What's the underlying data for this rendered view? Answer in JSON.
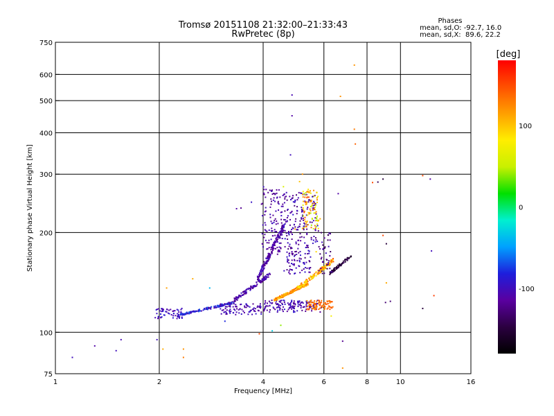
{
  "chart_data": {
    "type": "scatter",
    "title": "Tromsø 20151108 21:32:00–21:33:43",
    "subtitle": "RwPretec (8p)",
    "xlabel": "Frequency [MHz]",
    "ylabel": "Stationary phase Virtual Height [km]",
    "x_scale": "log",
    "y_scale": "log",
    "xlim": [
      1,
      16
    ],
    "ylim": [
      75,
      750
    ],
    "x_ticks": [
      1,
      2,
      4,
      6,
      8,
      10,
      16
    ],
    "y_ticks": [
      75,
      100,
      200,
      300,
      400,
      500,
      600,
      750
    ],
    "grid": true,
    "phase_stats": {
      "header": "Phases",
      "line_o": "mean, sd,O: -92.7, 16.0",
      "line_x": "mean, sd,X:  89.6, 22.2"
    },
    "colorbar": {
      "label": "[deg]",
      "range": [
        -180,
        180
      ],
      "ticks": [
        100,
        0,
        -100
      ],
      "tick_labels": [
        "100",
        "0",
        "-100"
      ]
    },
    "color_scale": [
      "#000000",
      "#2b0040",
      "#5a00a0",
      "#1e1edc",
      "#00a0ff",
      "#00f0d0",
      "#00e000",
      "#c8f000",
      "#ffee00",
      "#ffa000",
      "#ff5000",
      "#ff0000"
    ],
    "points": [
      [
        1.12,
        84,
        -100
      ],
      [
        1.3,
        91,
        -110
      ],
      [
        1.5,
        88,
        -100
      ],
      [
        1.55,
        95,
        -105
      ],
      [
        1.97,
        95,
        -100
      ],
      [
        2.05,
        89,
        110
      ],
      [
        2.1,
        136,
        115
      ],
      [
        2.35,
        89,
        120
      ],
      [
        2.35,
        84,
        130
      ],
      [
        2.5,
        145,
        110
      ],
      [
        2.8,
        136,
        -40
      ],
      [
        3.1,
        108,
        -80
      ],
      [
        3.35,
        236,
        -110
      ],
      [
        3.45,
        237,
        -120
      ],
      [
        3.7,
        247,
        -95
      ],
      [
        3.9,
        99,
        150
      ],
      [
        3.95,
        115,
        -130
      ],
      [
        4.25,
        101,
        -30
      ],
      [
        4.5,
        105,
        40
      ],
      [
        4.58,
        275,
        60
      ],
      [
        4.85,
        450,
        -110
      ],
      [
        4.85,
        520,
        -105
      ],
      [
        4.8,
        343,
        -100
      ],
      [
        4.95,
        205,
        110
      ],
      [
        5.1,
        285,
        100
      ],
      [
        5.2,
        300,
        120
      ],
      [
        5.4,
        265,
        130
      ],
      [
        5.6,
        118,
        110
      ],
      [
        5.7,
        175,
        90
      ],
      [
        5.85,
        220,
        110
      ],
      [
        6.3,
        112,
        75
      ],
      [
        6.6,
        262,
        -110
      ],
      [
        6.8,
        94,
        -120
      ],
      [
        6.8,
        78,
        120
      ],
      [
        6.7,
        515,
        120
      ],
      [
        7.35,
        640,
        120
      ],
      [
        7.35,
        410,
        130
      ],
      [
        7.4,
        370,
        140
      ],
      [
        8.3,
        283,
        150
      ],
      [
        8.6,
        284,
        -140
      ],
      [
        8.9,
        290,
        -150
      ],
      [
        8.9,
        196,
        150
      ],
      [
        9.1,
        185,
        -150
      ],
      [
        9.1,
        141,
        110
      ],
      [
        9.05,
        123,
        -130
      ],
      [
        9.35,
        124,
        -130
      ],
      [
        11.6,
        297,
        150
      ],
      [
        11.6,
        118,
        -150
      ],
      [
        12.2,
        290,
        -110
      ],
      [
        12.3,
        176,
        -100
      ],
      [
        12.5,
        129,
        155
      ]
    ],
    "clusters": [
      {
        "x_range": [
          1.92,
          2.35
        ],
        "y_range": [
          110,
          118
        ],
        "n": 60,
        "phase_range": [
          -115,
          -85
        ],
        "trend": "flat"
      },
      {
        "x_range": [
          2.3,
          3.3
        ],
        "y_range": [
          113,
          123
        ],
        "n": 140,
        "phase_range": [
          -120,
          -60
        ],
        "trend": "rising"
      },
      {
        "x_range": [
          3.0,
          3.95
        ],
        "y_range": [
          113,
          122
        ],
        "n": 90,
        "phase_range": [
          -120,
          -90
        ],
        "trend": "flat"
      },
      {
        "x_range": [
          3.3,
          4.2
        ],
        "y_range": [
          125,
          150
        ],
        "n": 120,
        "phase_range": [
          -125,
          -95
        ],
        "trend": "rising"
      },
      {
        "x_range": [
          3.85,
          4.6
        ],
        "y_range": [
          145,
          210
        ],
        "n": 180,
        "phase_range": [
          -125,
          -95
        ],
        "trend": "rising"
      },
      {
        "x_range": [
          3.95,
          4.55
        ],
        "y_range": [
          170,
          275
        ],
        "n": 110,
        "phase_range": [
          -125,
          -95
        ],
        "trend": "none"
      },
      {
        "x_range": [
          4.0,
          5.9
        ],
        "y_range": [
          115,
          125
        ],
        "n": 150,
        "phase_range": [
          -125,
          -90
        ],
        "trend": "flat"
      },
      {
        "x_range": [
          4.3,
          5.4
        ],
        "y_range": [
          125,
          140
        ],
        "n": 140,
        "phase_range": [
          90,
          145
        ],
        "trend": "rising"
      },
      {
        "x_range": [
          5.0,
          6.4
        ],
        "y_range": [
          135,
          165
        ],
        "n": 140,
        "phase_range": [
          70,
          150
        ],
        "trend": "rising"
      },
      {
        "x_range": [
          5.35,
          6.4
        ],
        "y_range": [
          117,
          125
        ],
        "n": 90,
        "phase_range": [
          120,
          150
        ],
        "trend": "flat"
      },
      {
        "x_range": [
          4.5,
          5.8
        ],
        "y_range": [
          185,
          265
        ],
        "n": 160,
        "phase_range": [
          -130,
          -90
        ],
        "trend": "none"
      },
      {
        "x_range": [
          5.2,
          5.8
        ],
        "y_range": [
          205,
          270
        ],
        "n": 90,
        "phase_range": [
          40,
          150
        ],
        "trend": "none"
      },
      {
        "x_range": [
          4.6,
          5.5
        ],
        "y_range": [
          150,
          185
        ],
        "n": 90,
        "phase_range": [
          -130,
          -90
        ],
        "trend": "none"
      },
      {
        "x_range": [
          6.2,
          7.2
        ],
        "y_range": [
          150,
          170
        ],
        "n": 70,
        "phase_range": [
          -165,
          -135
        ],
        "trend": "rising"
      },
      {
        "x_range": [
          5.8,
          6.3
        ],
        "y_range": [
          150,
          200
        ],
        "n": 40,
        "phase_range": [
          -140,
          -100
        ],
        "trend": "none"
      }
    ]
  }
}
